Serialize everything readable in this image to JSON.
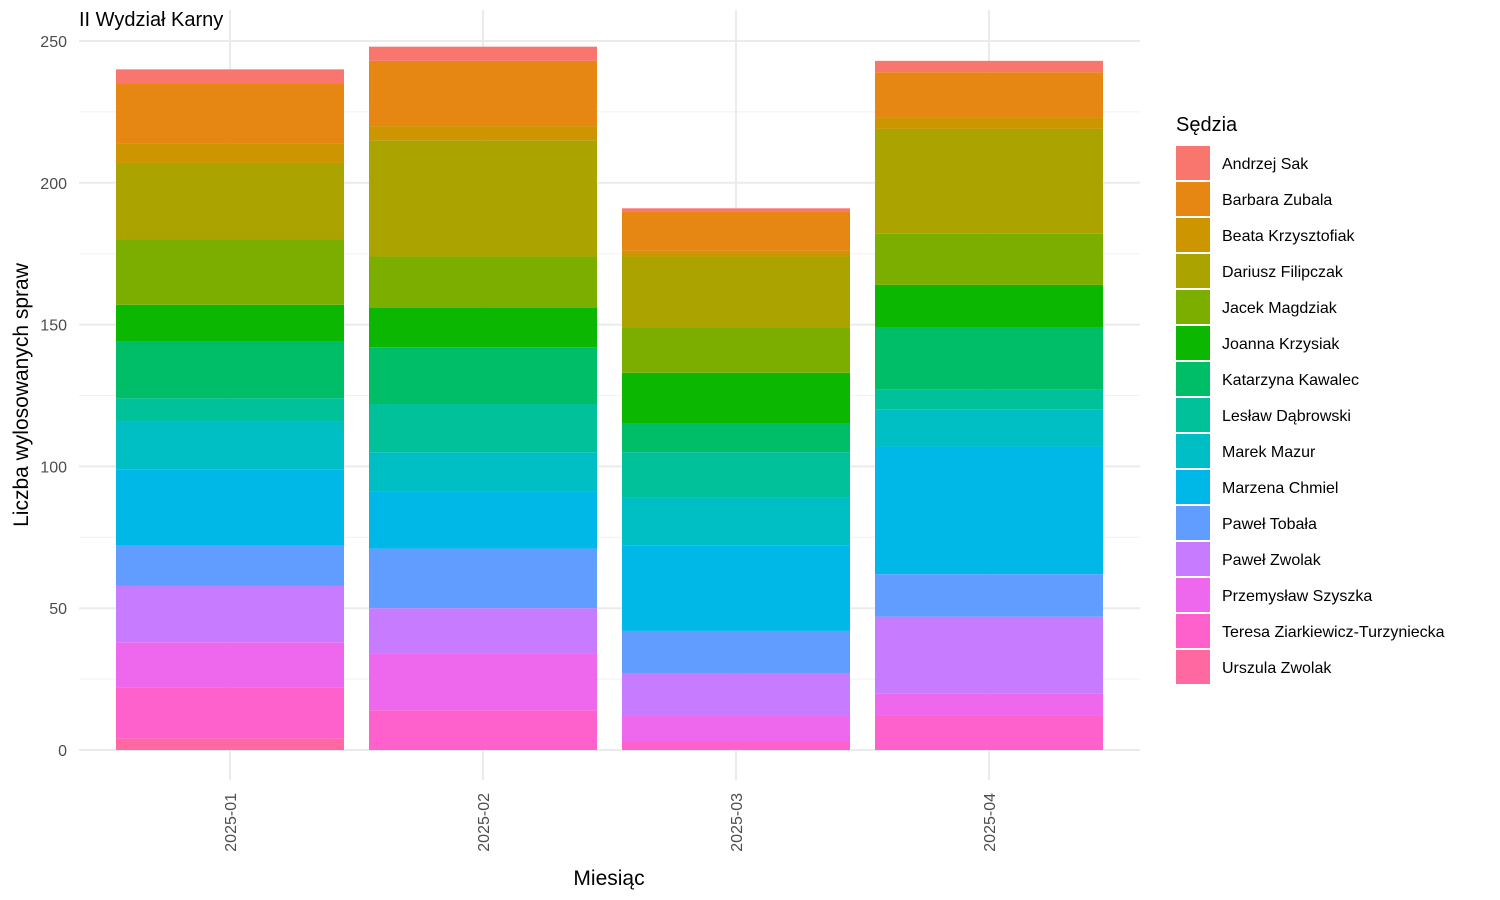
{
  "chart_data": {
    "type": "bar",
    "stacked": true,
    "title": "II Wydział Karny",
    "xlabel": "Miesiąc",
    "ylabel": "Liczba wylosowanych spraw",
    "ylim": [
      0,
      250
    ],
    "yticks": [
      0,
      50,
      100,
      150,
      200,
      250
    ],
    "grid": true,
    "legend_title": "Sędzia",
    "legend_position": "right",
    "categories": [
      "2025-01",
      "2025-02",
      "2025-03",
      "2025-04"
    ],
    "series": [
      {
        "name": "Andrzej Sak",
        "color": "#F8766D",
        "values": [
          5,
          5,
          1,
          4
        ]
      },
      {
        "name": "Barbara Zubala",
        "color": "#E68613",
        "values": [
          21,
          23,
          14,
          16
        ]
      },
      {
        "name": "Beata Krzysztofiak",
        "color": "#CD9600",
        "values": [
          7,
          5,
          2,
          4
        ]
      },
      {
        "name": "Dariusz Filipczak",
        "color": "#ABA300",
        "values": [
          27,
          41,
          25,
          37
        ]
      },
      {
        "name": "Jacek Magdziak",
        "color": "#7CAE00",
        "values": [
          23,
          18,
          16,
          18
        ]
      },
      {
        "name": "Joanna Krzysiak",
        "color": "#0CB702",
        "values": [
          13,
          14,
          18,
          15
        ]
      },
      {
        "name": "Katarzyna Kawalec",
        "color": "#00BE67",
        "values": [
          20,
          20,
          10,
          22
        ]
      },
      {
        "name": "Lesław Dąbrowski",
        "color": "#00C19A",
        "values": [
          8,
          17,
          16,
          7
        ]
      },
      {
        "name": "Marek Mazur",
        "color": "#00BFC4",
        "values": [
          17,
          14,
          17,
          13
        ]
      },
      {
        "name": "Marzena Chmiel",
        "color": "#00B8E7",
        "values": [
          27,
          20,
          30,
          45
        ]
      },
      {
        "name": "Paweł Tobała",
        "color": "#619CFF",
        "values": [
          14,
          21,
          15,
          15
        ]
      },
      {
        "name": "Paweł Zwolak",
        "color": "#C77CFF",
        "values": [
          20,
          16,
          15,
          27
        ]
      },
      {
        "name": "Przemysław Szyszka",
        "color": "#ED68ED",
        "values": [
          16,
          20,
          9,
          8
        ]
      },
      {
        "name": "Teresa Ziarkiewicz-Turzyniecka",
        "color": "#FF61CC",
        "values": [
          18,
          14,
          3,
          12
        ]
      },
      {
        "name": "Urszula Zwolak",
        "color": "#FF68A1",
        "values": [
          4,
          0,
          0,
          0
        ]
      }
    ]
  }
}
